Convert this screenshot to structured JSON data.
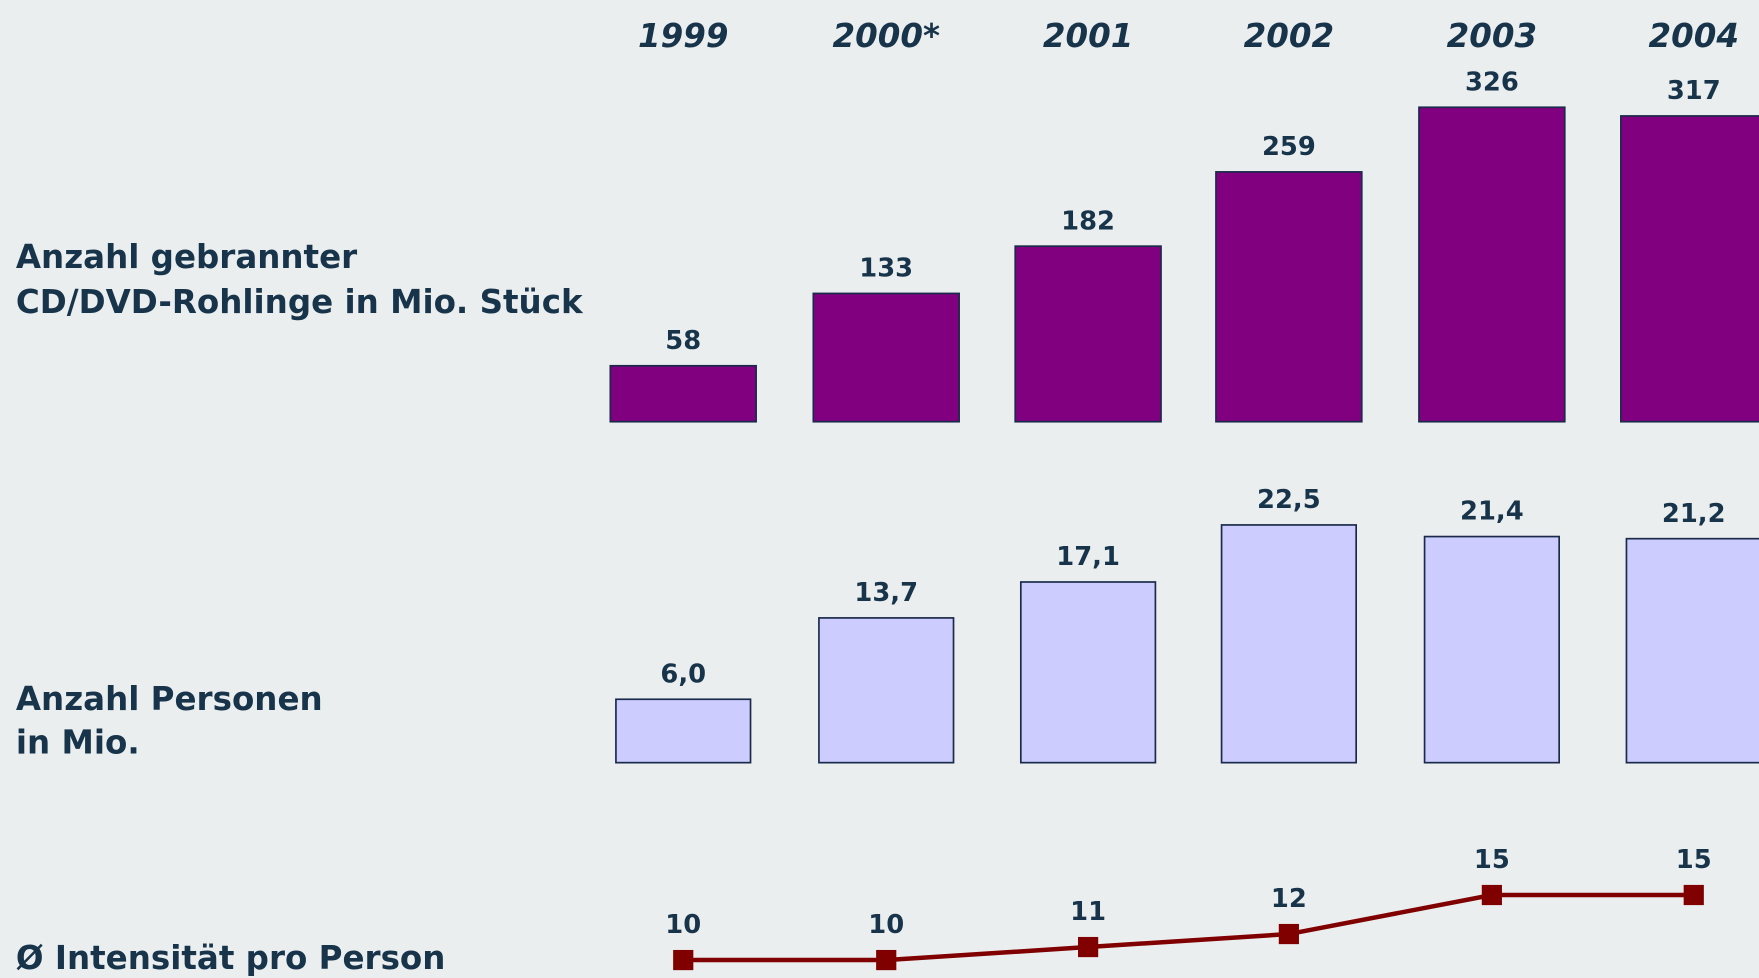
{
  "chart_data": [
    {
      "type": "bar",
      "title": [
        "Anzahl gebrannter",
        "CD/DVD-Rohlinge in Mio. Stück"
      ],
      "categories": [
        "1999",
        "2000*",
        "2001",
        "2002",
        "2003",
        "2004"
      ],
      "values": [
        58,
        133,
        182,
        259,
        326,
        317
      ],
      "color": "#800080"
    },
    {
      "type": "bar",
      "title": [
        "Anzahl Personen",
        "in Mio."
      ],
      "values": [
        6.0,
        13.7,
        17.1,
        22.5,
        21.4,
        21.2
      ],
      "value_labels": [
        "6,0",
        "13,7",
        "17,1",
        "22,5",
        "21,4",
        "21,2"
      ],
      "color": "#ccccff"
    },
    {
      "type": "line",
      "title": [
        "Ø Intensität pro Person"
      ],
      "values": [
        10,
        10,
        11,
        12,
        15,
        15
      ],
      "color": "#800000"
    }
  ]
}
